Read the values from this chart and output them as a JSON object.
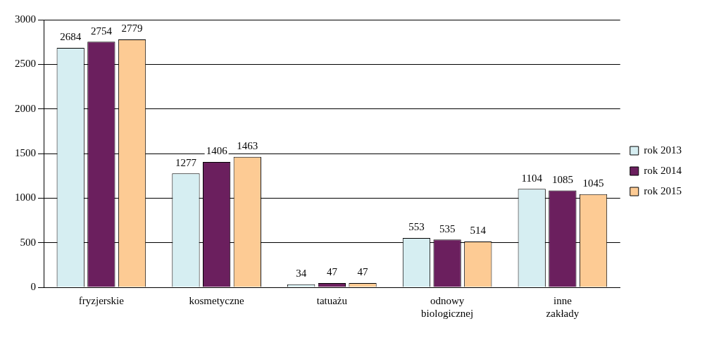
{
  "chart_data": {
    "type": "bar",
    "categories": [
      "fryzjerskie",
      "kosmetyczne",
      "tatuażu",
      "odnowy biologicznej",
      "inne zakłady"
    ],
    "series": [
      {
        "name": "rok 2013",
        "color": "#d6eef2",
        "values": [
          2684,
          1277,
          34,
          553,
          1104
        ]
      },
      {
        "name": "rok 2014",
        "color": "#6b1f5e",
        "values": [
          2754,
          1406,
          47,
          535,
          1085
        ]
      },
      {
        "name": "rok 2015",
        "color": "#fdcb94",
        "values": [
          2779,
          1463,
          47,
          514,
          1045
        ]
      }
    ],
    "ylim": [
      0,
      3000
    ],
    "yticks": [
      0,
      500,
      1000,
      1500,
      2000,
      2500,
      3000
    ],
    "grid": "y",
    "legend": "right",
    "data_labels": true
  }
}
